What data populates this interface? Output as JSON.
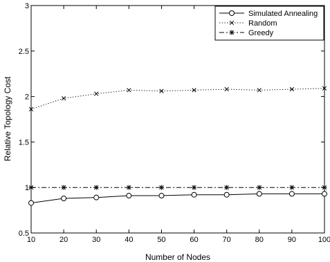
{
  "chart_data": {
    "type": "line",
    "title": "",
    "xlabel": "Number of Nodes",
    "ylabel": "Relative Topology Cost",
    "xlim": [
      10,
      100
    ],
    "ylim": [
      0.5,
      3
    ],
    "x_ticks": [
      10,
      20,
      30,
      40,
      50,
      60,
      70,
      80,
      90,
      100
    ],
    "y_ticks": [
      0.5,
      1,
      1.5,
      2,
      2.5,
      3
    ],
    "x_tick_labels": [
      "10",
      "20",
      "30",
      "40",
      "50",
      "60",
      "70",
      "80",
      "90",
      "100"
    ],
    "y_tick_labels": [
      "0.5",
      "1",
      "1.5",
      "2",
      "2.5",
      "3"
    ],
    "grid": false,
    "legend_position": "top-right",
    "x": [
      10,
      20,
      30,
      40,
      50,
      60,
      70,
      80,
      90,
      100
    ],
    "series": [
      {
        "name": "Simulated Annealing",
        "values": [
          0.83,
          0.88,
          0.89,
          0.91,
          0.91,
          0.92,
          0.92,
          0.93,
          0.93,
          0.93
        ],
        "line_style": "solid",
        "marker": "circle",
        "color": "#000000"
      },
      {
        "name": "Random",
        "values": [
          1.86,
          1.98,
          2.03,
          2.07,
          2.06,
          2.07,
          2.08,
          2.07,
          2.08,
          2.09
        ],
        "line_style": "dotted",
        "marker": "x",
        "color": "#000000"
      },
      {
        "name": "Greedy",
        "values": [
          1.0,
          1.0,
          1.0,
          1.0,
          1.0,
          1.0,
          1.0,
          1.0,
          1.0,
          1.0
        ],
        "line_style": "dash-dot",
        "marker": "star",
        "color": "#000000"
      }
    ]
  }
}
